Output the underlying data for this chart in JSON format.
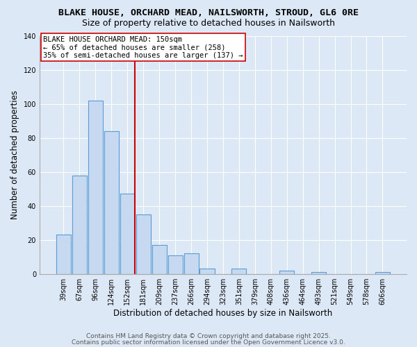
{
  "title": "BLAKE HOUSE, ORCHARD MEAD, NAILSWORTH, STROUD, GL6 0RE",
  "subtitle": "Size of property relative to detached houses in Nailsworth",
  "xlabel": "Distribution of detached houses by size in Nailsworth",
  "ylabel": "Number of detached properties",
  "bar_labels": [
    "39sqm",
    "67sqm",
    "96sqm",
    "124sqm",
    "152sqm",
    "181sqm",
    "209sqm",
    "237sqm",
    "266sqm",
    "294sqm",
    "323sqm",
    "351sqm",
    "379sqm",
    "408sqm",
    "436sqm",
    "464sqm",
    "493sqm",
    "521sqm",
    "549sqm",
    "578sqm",
    "606sqm"
  ],
  "bar_values": [
    23,
    58,
    102,
    84,
    47,
    35,
    17,
    11,
    12,
    3,
    0,
    3,
    0,
    0,
    2,
    0,
    1,
    0,
    0,
    0,
    1
  ],
  "bar_color": "#c6d9f0",
  "bar_edge_color": "#5b9bd5",
  "vline_x_index": 4,
  "vline_color": "#cc0000",
  "annotation_line1": "BLAKE HOUSE ORCHARD MEAD: 150sqm",
  "annotation_line2": "← 65% of detached houses are smaller (258)",
  "annotation_line3": "35% of semi-detached houses are larger (137) →",
  "annotation_box_color": "#ffffff",
  "annotation_box_edge": "#cc0000",
  "ylim": [
    0,
    140
  ],
  "yticks": [
    0,
    20,
    40,
    60,
    80,
    100,
    120,
    140
  ],
  "bg_color": "#dce8f5",
  "plot_bg_color": "#dce8f5",
  "footer1": "Contains HM Land Registry data © Crown copyright and database right 2025.",
  "footer2": "Contains public sector information licensed under the Open Government Licence v3.0.",
  "title_fontsize": 9.5,
  "subtitle_fontsize": 9,
  "annotation_fontsize": 7.5,
  "axis_label_fontsize": 8.5,
  "tick_fontsize": 7,
  "footer_fontsize": 6.5
}
